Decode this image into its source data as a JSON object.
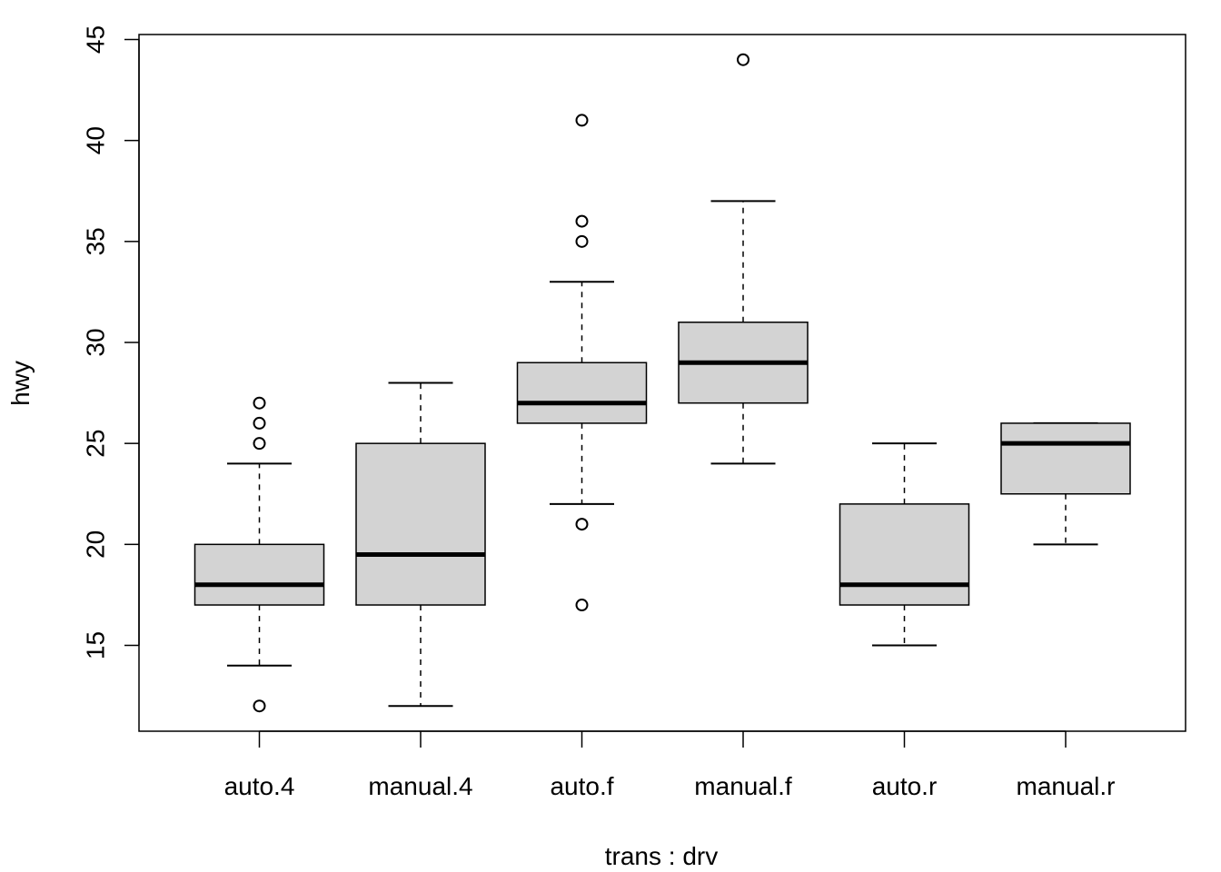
{
  "chart_data": {
    "type": "boxplot",
    "title": "",
    "xlabel": "trans : drv",
    "ylabel": "hwy",
    "ylim": [
      11.5,
      46
    ],
    "yticks": [
      15,
      20,
      25,
      30,
      35,
      40,
      45
    ],
    "ytick_labels": [
      "15",
      "20",
      "25",
      "30",
      "35",
      "40",
      "45"
    ],
    "categories": [
      "auto.4",
      "manual.4",
      "auto.f",
      "manual.f",
      "auto.r",
      "manual.r"
    ],
    "boxes": [
      {
        "category": "auto.4",
        "whisker_low": 14,
        "q1": 17,
        "median": 18,
        "q3": 20,
        "whisker_high": 24,
        "outliers": [
          12,
          25,
          26,
          27
        ]
      },
      {
        "category": "manual.4",
        "whisker_low": 12,
        "q1": 17,
        "median": 19.5,
        "q3": 25,
        "whisker_high": 28,
        "outliers": []
      },
      {
        "category": "auto.f",
        "whisker_low": 22,
        "q1": 26,
        "median": 27,
        "q3": 29,
        "whisker_high": 33,
        "outliers": [
          17,
          21,
          35,
          36,
          41
        ]
      },
      {
        "category": "manual.f",
        "whisker_low": 24,
        "q1": 27,
        "median": 29,
        "q3": 31,
        "whisker_high": 37,
        "outliers": [
          44
        ]
      },
      {
        "category": "auto.r",
        "whisker_low": 15,
        "q1": 17,
        "median": 18,
        "q3": 22,
        "whisker_high": 25,
        "outliers": []
      },
      {
        "category": "manual.r",
        "whisker_low": 20,
        "q1": 22.5,
        "median": 25,
        "q3": 26,
        "whisker_high": 26,
        "outliers": []
      }
    ],
    "box_fill": "#d3d3d3",
    "line_color": "#000000",
    "grid": false,
    "legend": "none"
  }
}
